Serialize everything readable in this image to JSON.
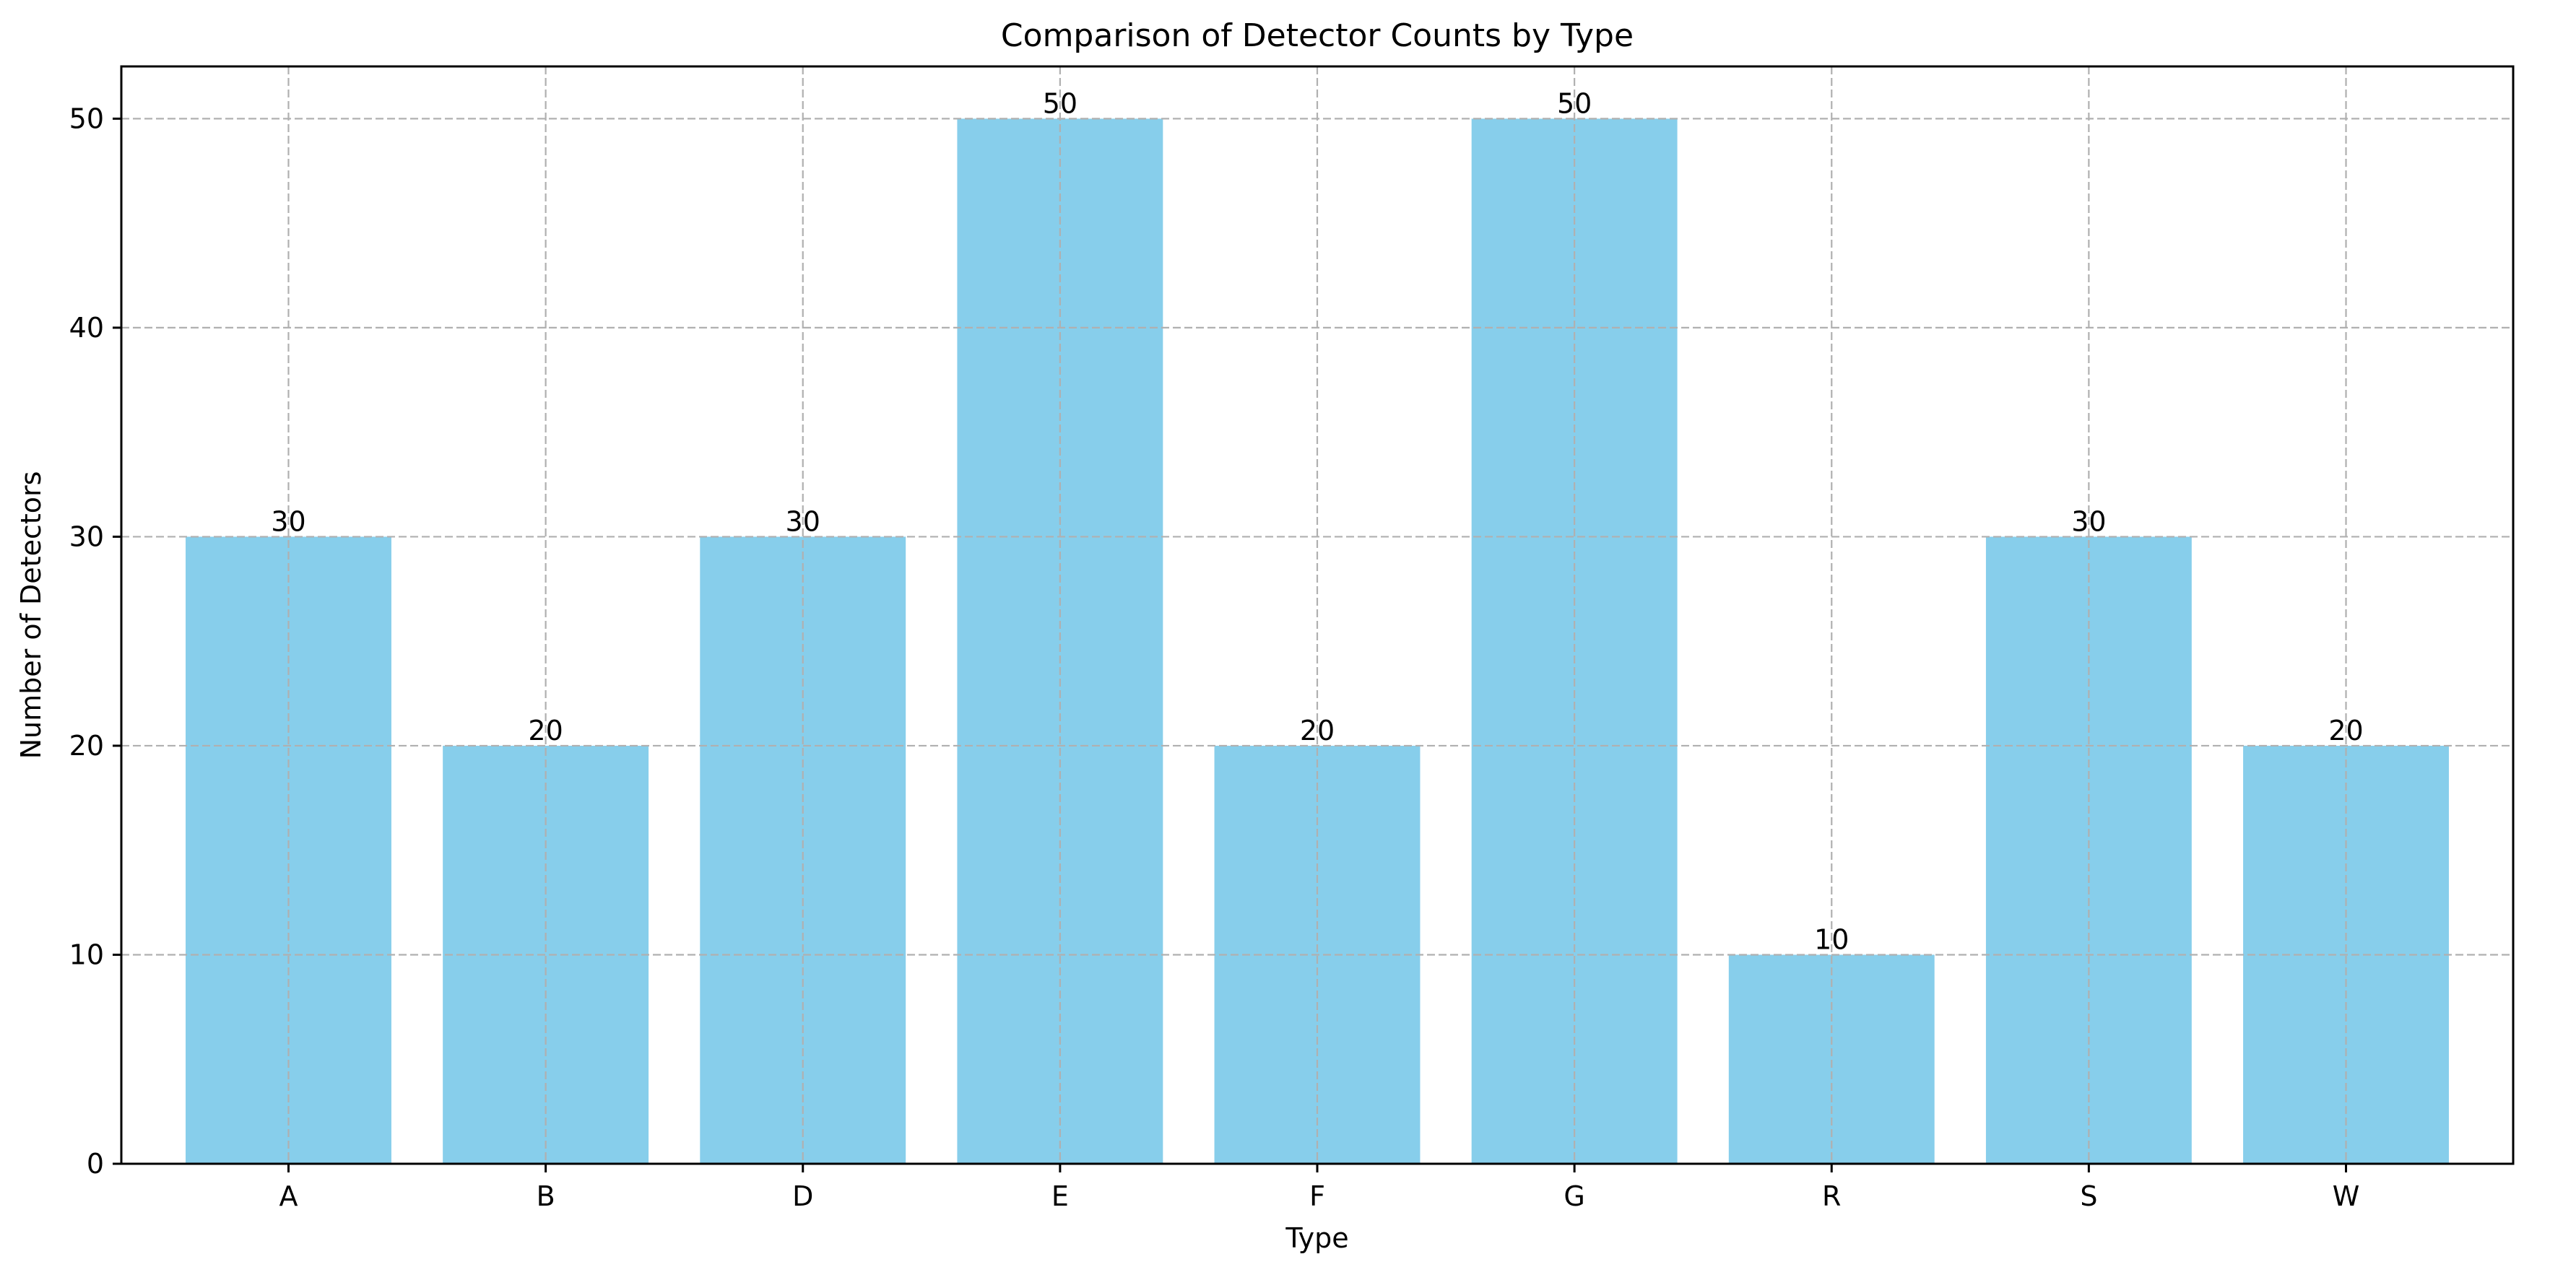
{
  "chart_data": {
    "type": "bar",
    "title": "Comparison of Detector Counts by Type",
    "xlabel": "Type",
    "ylabel": "Number of Detectors",
    "categories": [
      "A",
      "B",
      "D",
      "E",
      "F",
      "G",
      "R",
      "S",
      "W"
    ],
    "values": [
      30,
      20,
      30,
      50,
      20,
      50,
      10,
      30,
      20
    ],
    "data_labels": [
      "30",
      "20",
      "30",
      "50",
      "20",
      "50",
      "10",
      "30",
      "20"
    ],
    "ylim": [
      0,
      52.5
    ],
    "yticks": [
      0,
      10,
      20,
      30,
      40,
      50
    ],
    "ytick_labels": [
      "0",
      "10",
      "20",
      "30",
      "40",
      "50"
    ],
    "grid": true,
    "grid_style": "dashed",
    "bar_color": "#87CEEB",
    "grid_color": "#b0b0b0",
    "legend": "none"
  }
}
